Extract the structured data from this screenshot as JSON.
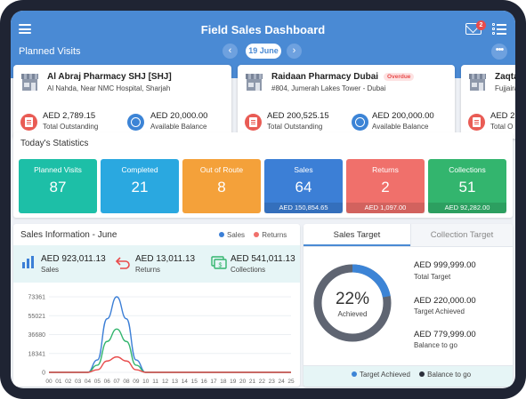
{
  "header": {
    "title": "Field Sales Dashboard",
    "mail_badge": "2",
    "planned_visits_label": "Planned Visits",
    "prev": "‹",
    "next": "›",
    "date": "19 June",
    "more": "•••"
  },
  "visits": [
    {
      "name": "Al Abraj Pharmacy SHJ [SHJ]",
      "address": "Al Nahda, Near NMC Hospital, Sharjah",
      "overdue": "",
      "outstanding": "AED 2,789.15",
      "outstanding_label": "Total Outstanding",
      "balance": "AED 20,000.00",
      "balance_label": "Available Balance"
    },
    {
      "name": "Raidaan Pharmacy Dubai",
      "address": "#804, Jumerah Lakes Tower - Dubai",
      "overdue": "Overdue",
      "outstanding": "AED 200,525.15",
      "outstanding_label": "Total Outstanding",
      "balance": "AED 200,000.00",
      "balance_label": "Available Balance"
    },
    {
      "name": "Zaqta",
      "address": "Fujjaira",
      "overdue": "",
      "outstanding": "AED 2",
      "outstanding_label": "Total O",
      "balance": "",
      "balance_label": ""
    }
  ],
  "stats": {
    "title": "Today's Statistics",
    "tiles": [
      {
        "label": "Planned Visits",
        "value": "87",
        "sub": "",
        "color": "#1dbfa7"
      },
      {
        "label": "Completed",
        "value": "21",
        "sub": "",
        "color": "#2aa8e0"
      },
      {
        "label": "Out of Route",
        "value": "8",
        "sub": "",
        "color": "#f4a13a"
      },
      {
        "label": "Sales",
        "value": "64",
        "sub": "AED 150,854.65",
        "color": "#3c7fd6"
      },
      {
        "label": "Returns",
        "value": "2",
        "sub": "AED 1,097.00",
        "color": "#f0706b"
      },
      {
        "label": "Collections",
        "value": "51",
        "sub": "AED 92,282.00",
        "color": "#33b56e"
      }
    ]
  },
  "sales_info": {
    "title": "Sales Information - June",
    "legend_sales": "Sales",
    "legend_returns": "Returns",
    "sales_value": "AED 923,011.13",
    "sales_label": "Sales",
    "returns_value": "AED 13,011.13",
    "returns_label": "Returns",
    "collections_value": "AED 541,011.13",
    "collections_label": "Collections"
  },
  "chart_data": {
    "type": "line",
    "x": [
      "00",
      "01",
      "02",
      "03",
      "04",
      "05",
      "06",
      "07",
      "08",
      "09",
      "10",
      "11",
      "12",
      "13",
      "14",
      "15",
      "16",
      "17",
      "18",
      "19",
      "20",
      "21",
      "22",
      "23",
      "24",
      "25"
    ],
    "yticks": [
      "73361",
      "55021",
      "36680",
      "18341",
      "0"
    ],
    "ylim": [
      0,
      73361
    ],
    "series": [
      {
        "color": "#3c7fd6",
        "values": [
          0,
          0,
          0,
          0,
          0,
          12000,
          52000,
          73361,
          52000,
          12000,
          0,
          0,
          0,
          0,
          0,
          0,
          0,
          0,
          0,
          0,
          0,
          0,
          0,
          0,
          0,
          0
        ]
      },
      {
        "color": "#33b56e",
        "values": [
          0,
          0,
          0,
          0,
          0,
          7000,
          30000,
          42000,
          30000,
          7000,
          0,
          0,
          0,
          0,
          0,
          0,
          0,
          0,
          0,
          0,
          0,
          0,
          0,
          0,
          0,
          0
        ]
      },
      {
        "color": "#e84c4c",
        "values": [
          0,
          0,
          0,
          0,
          0,
          2500,
          11000,
          15000,
          11000,
          2500,
          0,
          0,
          0,
          0,
          0,
          0,
          0,
          0,
          0,
          0,
          0,
          0,
          0,
          0,
          0,
          0
        ]
      }
    ]
  },
  "target": {
    "tab_sales": "Sales Target",
    "tab_collection": "Collection Target",
    "percent": "22%",
    "percent_label": "Achieved",
    "achieved_fraction": 0.22,
    "target_value": "AED 999,999.00",
    "target_label": "Total Target",
    "achieved_value": "AED 220,000.00",
    "achieved_label": "Target Achieved",
    "balance_value": "AED 779,999.00",
    "balance_label": "Balance to go",
    "legend_achieved": "Target Achieved",
    "legend_balance": "Balance to go",
    "color_achieved": "#3c84d6",
    "color_balance": "#5f6572"
  }
}
